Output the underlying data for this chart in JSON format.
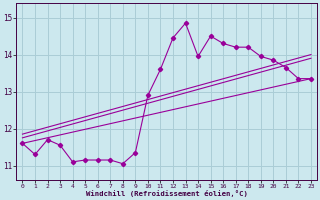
{
  "xlabel": "Windchill (Refroidissement éolien,°C)",
  "bg_color": "#cce8ee",
  "grid_color": "#aacdd6",
  "line_color": "#990099",
  "xlim": [
    -0.5,
    23.5
  ],
  "ylim": [
    10.6,
    15.4
  ],
  "xticks": [
    0,
    1,
    2,
    3,
    4,
    5,
    6,
    7,
    8,
    9,
    10,
    11,
    12,
    13,
    14,
    15,
    16,
    17,
    18,
    19,
    20,
    21,
    22,
    23
  ],
  "yticks": [
    11,
    12,
    13,
    14,
    15
  ],
  "hours": [
    0,
    1,
    2,
    3,
    4,
    5,
    6,
    7,
    8,
    9,
    10,
    11,
    12,
    13,
    14,
    15,
    16,
    17,
    18,
    19,
    20,
    21,
    22,
    23
  ],
  "temp": [
    11.6,
    11.3,
    11.7,
    11.55,
    11.1,
    11.15,
    11.15,
    11.15,
    11.05,
    11.35,
    12.9,
    13.6,
    14.45,
    14.85,
    13.95,
    14.5,
    14.3,
    14.2,
    14.2,
    13.95,
    13.85,
    13.65,
    13.35,
    13.35
  ],
  "linear1_start": 11.6,
  "linear1_end": 13.35,
  "linear2_start": 11.75,
  "linear2_end": 13.9,
  "linear3_start": 11.85,
  "linear3_end": 14.0
}
